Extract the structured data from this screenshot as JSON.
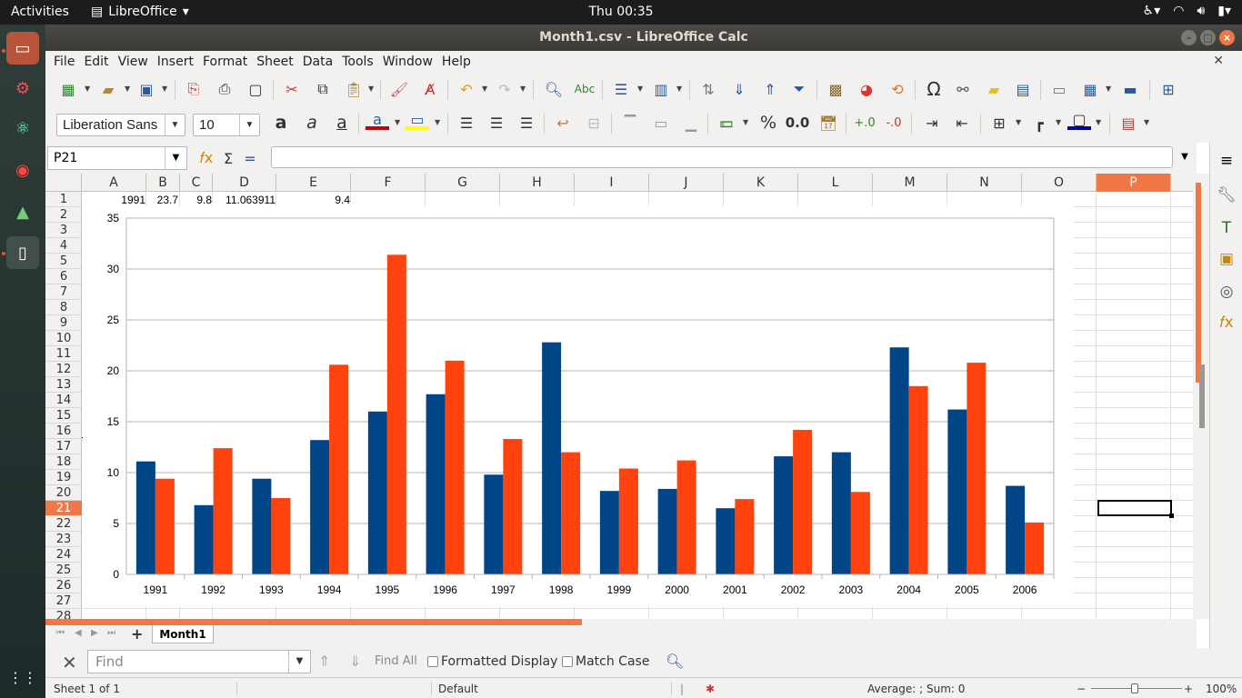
{
  "topbar": {
    "activities": "Activities",
    "app_menu": "LibreOffice",
    "clock": "Thu 00:35"
  },
  "window": {
    "title": "Month1.csv - LibreOffice Calc"
  },
  "menu": [
    "File",
    "Edit",
    "View",
    "Insert",
    "Format",
    "Sheet",
    "Data",
    "Tools",
    "Window",
    "Help"
  ],
  "format": {
    "font_name": "Liberation Sans",
    "font_size": "10",
    "number_format_label": "0.0",
    "percent_label": "%"
  },
  "formula": {
    "name_box": "P21",
    "content": ""
  },
  "columns": [
    "A",
    "B",
    "C",
    "D",
    "E",
    "F",
    "G",
    "H",
    "I",
    "J",
    "K",
    "L",
    "M",
    "N",
    "O",
    "P"
  ],
  "rows": [
    "1",
    "2",
    "3",
    "4",
    "5",
    "6",
    "7",
    "8",
    "9",
    "10",
    "11",
    "12",
    "13",
    "14",
    "15",
    "16",
    "17",
    "18",
    "19",
    "20",
    "21",
    "22",
    "23",
    "24",
    "25",
    "26",
    "27",
    "28"
  ],
  "selected_column": "P",
  "selected_row": "21",
  "cells_row1": {
    "A1": "1991",
    "B1": "23.7",
    "C1": "9.8",
    "D1": "11.063911",
    "E1": "9.4"
  },
  "chart_data": {
    "type": "bar",
    "categories": [
      "1991",
      "1992",
      "1993",
      "1994",
      "1995",
      "1996",
      "1997",
      "1998",
      "1999",
      "2000",
      "2001",
      "2002",
      "2003",
      "2004",
      "2005",
      "2006"
    ],
    "series": [
      {
        "values": [
          11.1,
          6.8,
          9.4,
          13.2,
          16.0,
          17.7,
          9.8,
          22.8,
          8.2,
          8.4,
          6.5,
          11.6,
          12.0,
          22.3,
          16.2,
          8.7
        ],
        "color": "#004586"
      },
      {
        "values": [
          9.4,
          12.4,
          7.5,
          20.6,
          31.4,
          21.0,
          13.3,
          12.0,
          10.4,
          11.2,
          7.4,
          14.2,
          8.1,
          18.5,
          20.8,
          5.1
        ],
        "color": "#ff420e"
      }
    ],
    "ylim": [
      0,
      35
    ],
    "yticks": [
      "0",
      "5",
      "10",
      "15",
      "20",
      "25",
      "30",
      "35"
    ],
    "grid": true,
    "legend": "none"
  },
  "sheet": {
    "tab_name": "Month1"
  },
  "findbar": {
    "placeholder": "Find",
    "find_all": "Find All",
    "formatted_display": "Formatted Display",
    "match_case": "Match Case"
  },
  "status": {
    "sheet": "Sheet 1 of 1",
    "style": "Default",
    "summary": "Average: ; Sum: 0",
    "zoom": "100%"
  }
}
